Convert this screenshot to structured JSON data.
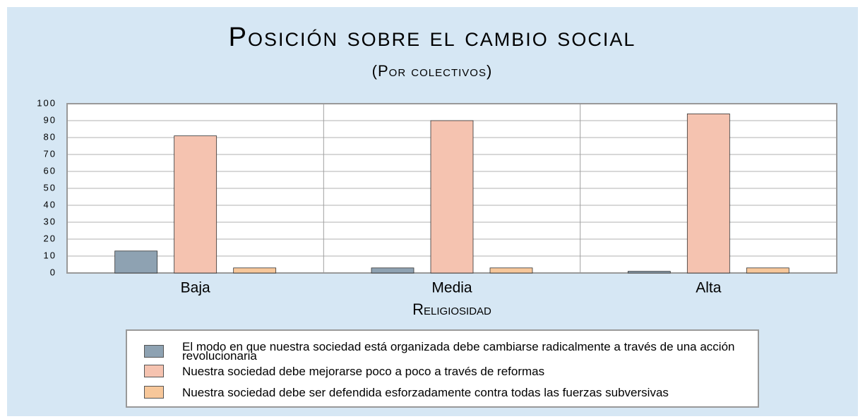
{
  "chart_data": {
    "type": "bar",
    "title": "Posición sobre el cambio social",
    "subtitle": "(Por colectivos)",
    "x_label": "Religiosidad",
    "categories": [
      "Baja",
      "Media",
      "Alta"
    ],
    "series": [
      {
        "name": "El modo en que nuestra sociedad está organizada debe cambiarse radicalmente a través de una acción revolucionaria",
        "color": "#8ea2b2",
        "values": [
          13,
          3,
          1
        ]
      },
      {
        "name": "Nuestra sociedad debe mejorarse poco a poco a través de reformas",
        "color": "#f5c3b0",
        "values": [
          81,
          90,
          94
        ]
      },
      {
        "name": "Nuestra sociedad debe ser defendida esforzadamente contra todas las fuerzas subversivas",
        "color": "#f7c79a",
        "values": [
          3,
          3,
          3
        ]
      }
    ],
    "ylim": [
      0,
      100
    ],
    "yticks": [
      0,
      10,
      20,
      30,
      40,
      50,
      60,
      70,
      80,
      90,
      100
    ],
    "grid": true
  }
}
